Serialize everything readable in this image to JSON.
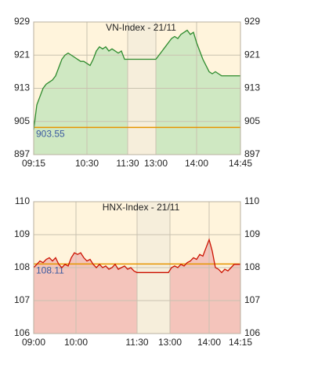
{
  "chart_data": [
    {
      "type": "line",
      "title": "VN-Index - 21/11",
      "color": "#2e8b2e",
      "fill_color": "#cfe8c2",
      "xlim": [
        0,
        66
      ],
      "xticks": [
        {
          "value": 0,
          "label": "09:15"
        },
        {
          "value": 17,
          "label": "10:30"
        },
        {
          "value": 30,
          "label": "11:30"
        },
        {
          "value": 39,
          "label": "13:00"
        },
        {
          "value": 52,
          "label": "14:00"
        },
        {
          "value": 66,
          "label": "14:45"
        }
      ],
      "ylim": [
        897,
        929
      ],
      "yticks": [
        897,
        905,
        913,
        921,
        929
      ],
      "grid": true,
      "reference": {
        "value": 903.55,
        "color": "#e69500"
      },
      "values": [
        903,
        909,
        911,
        913,
        914,
        914.5,
        915,
        916,
        918,
        920,
        921,
        921.5,
        921,
        920.5,
        920,
        919.5,
        919.5,
        919,
        918.5,
        920,
        922,
        923,
        922.5,
        923,
        922,
        922.5,
        922,
        921.5,
        922,
        920,
        920,
        920,
        920,
        920,
        920,
        920,
        920,
        920,
        920,
        920,
        921,
        922,
        923,
        924,
        925,
        925.5,
        925,
        926,
        926.5,
        927,
        926,
        926.5,
        924,
        922,
        920,
        918.5,
        917,
        916.5,
        917,
        916.5,
        916,
        916,
        916,
        916,
        916,
        916,
        916
      ]
    },
    {
      "type": "line",
      "title": "HNX-Index - 21/11",
      "color": "#cc1100",
      "fill_color": "#f4c4bb",
      "xlim": [
        0,
        66
      ],
      "xticks": [
        {
          "value": 0,
          "label": "09:00"
        },
        {
          "value": 13.5,
          "label": "10:00"
        },
        {
          "value": 33,
          "label": "11:30"
        },
        {
          "value": 43.5,
          "label": "13:00"
        },
        {
          "value": 56,
          "label": "14:00"
        },
        {
          "value": 66,
          "label": "14:15"
        }
      ],
      "ylim": [
        106,
        110
      ],
      "yticks": [
        106,
        107,
        108,
        109,
        110
      ],
      "grid": true,
      "reference": {
        "value": 108.11,
        "color": "#e69500"
      },
      "values": [
        108.0,
        108.1,
        108.2,
        108.15,
        108.25,
        108.3,
        108.2,
        108.3,
        108.1,
        108.0,
        108.1,
        108.05,
        108.3,
        108.45,
        108.4,
        108.45,
        108.3,
        108.2,
        108.25,
        108.1,
        108.0,
        108.1,
        108.0,
        108.05,
        107.95,
        108.0,
        108.1,
        107.95,
        108.0,
        108.05,
        107.95,
        108.0,
        107.9,
        107.85,
        107.85,
        107.85,
        107.85,
        107.85,
        107.85,
        107.85,
        107.85,
        107.85,
        107.85,
        107.85,
        108.0,
        108.05,
        108.0,
        108.1,
        108.05,
        108.15,
        108.2,
        108.3,
        108.25,
        108.4,
        108.35,
        108.6,
        108.85,
        108.5,
        108.0,
        107.95,
        107.85,
        107.95,
        107.9,
        108.0,
        108.1,
        108.1,
        108.1
      ]
    }
  ]
}
